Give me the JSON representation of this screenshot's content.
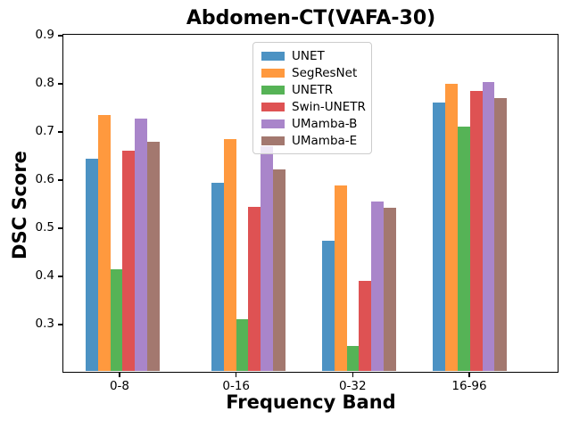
{
  "chart_data": {
    "type": "bar",
    "title": "Abdomen-CT(VAFA-30)",
    "xlabel": "Frequency Band",
    "ylabel": "DSC Score",
    "categories": [
      "0-8",
      "0-16",
      "0-32",
      "16-96"
    ],
    "series": [
      {
        "name": "UNET",
        "color": "#1f77b4",
        "values": [
          0.645,
          0.595,
          0.473,
          0.76
        ]
      },
      {
        "name": "SegResNet",
        "color": "#ff7f0e",
        "values": [
          0.735,
          0.685,
          0.588,
          0.8
        ]
      },
      {
        "name": "UNETR",
        "color": "#2ca02c",
        "values": [
          0.415,
          0.31,
          0.255,
          0.71
        ]
      },
      {
        "name": "Swin-UNETR",
        "color": "#d62728",
        "values": [
          0.66,
          0.545,
          0.39,
          0.785
        ]
      },
      {
        "name": "UMamba-B",
        "color": "#9467bd",
        "values": [
          0.728,
          0.67,
          0.555,
          0.803
        ]
      },
      {
        "name": "UMamba-E",
        "color": "#8c564b",
        "values": [
          0.68,
          0.622,
          0.542,
          0.77
        ]
      }
    ],
    "yticks": [
      0.3,
      0.4,
      0.5,
      0.6,
      0.7,
      0.8,
      0.9
    ],
    "ytick_labels": [
      "0.3",
      "0.4",
      "0.5",
      "0.6",
      "0.7",
      "0.8",
      "0.9"
    ],
    "ylim": [
      0.2,
      0.9
    ],
    "bar_alpha": 0.8,
    "legend_entries": [
      "UNET",
      "SegResNet",
      "UNETR",
      "Swin-UNETR",
      "UMamba-B",
      "UMamba-E"
    ],
    "legend_position": "upper center",
    "grid": false
  }
}
